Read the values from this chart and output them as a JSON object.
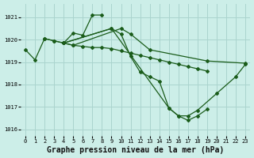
{
  "background_color": "#cceee8",
  "grid_color": "#aad4ce",
  "line_color": "#1a5c1a",
  "marker_color": "#1a5c1a",
  "xlabel": "Graphe pression niveau de la mer (hPa)",
  "xlabel_fontsize": 7,
  "xlim": [
    -0.5,
    23.5
  ],
  "ylim": [
    1015.7,
    1021.6
  ],
  "yticks": [
    1016,
    1017,
    1018,
    1019,
    1020,
    1021
  ],
  "xticks": [
    0,
    1,
    2,
    3,
    4,
    5,
    6,
    7,
    8,
    9,
    10,
    11,
    12,
    13,
    14,
    15,
    16,
    17,
    18,
    19,
    20,
    21,
    22,
    23
  ],
  "series": [
    {
      "x": [
        0,
        1,
        2,
        3,
        4,
        5,
        10,
        11,
        13,
        19,
        23
      ],
      "y": [
        1019.55,
        1019.1,
        1020.05,
        1019.95,
        1019.85,
        1019.75,
        1020.5,
        1020.25,
        1019.55,
        1019.05,
        1018.95
      ]
    },
    {
      "x": [
        2,
        3,
        4,
        5,
        6,
        7,
        8
      ],
      "y": [
        1020.05,
        1019.95,
        1019.85,
        1020.3,
        1020.2,
        1021.1,
        1021.1
      ]
    },
    {
      "x": [
        4,
        5,
        6,
        7,
        8,
        9,
        10,
        11,
        12,
        13,
        14,
        15,
        16,
        17,
        18,
        19
      ],
      "y": [
        1019.85,
        1019.75,
        1019.7,
        1019.65,
        1019.65,
        1019.6,
        1019.5,
        1019.4,
        1019.3,
        1019.2,
        1019.1,
        1019.0,
        1018.9,
        1018.8,
        1018.7,
        1018.6
      ]
    },
    {
      "x": [
        4,
        9,
        10,
        11,
        12,
        13,
        14,
        15,
        16,
        17,
        18,
        19
      ],
      "y": [
        1019.85,
        1020.5,
        1020.25,
        1019.25,
        1018.55,
        1018.35,
        1018.15,
        1016.95,
        1016.6,
        1016.4,
        1016.6,
        1016.9
      ]
    },
    {
      "x": [
        4,
        9,
        15,
        16,
        17,
        18,
        20,
        22,
        23
      ],
      "y": [
        1019.85,
        1020.5,
        1016.95,
        1016.6,
        1016.6,
        1016.85,
        1017.6,
        1018.35,
        1018.9
      ]
    }
  ]
}
